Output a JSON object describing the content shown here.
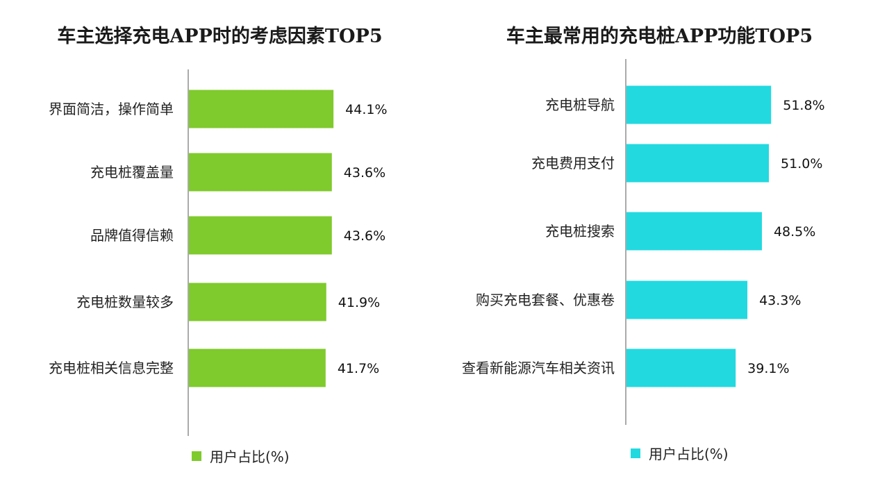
{
  "charts": [
    {
      "chart_data": {
        "type": "bar",
        "orientation": "horizontal",
        "title": "车主选择充电APP时的考虑因素TOP5",
        "categories": [
          "界面简洁，操作简单",
          "充电桩覆盖量",
          "品牌值得信赖",
          "充电桩数量较多",
          "充电桩相关信息完整"
        ],
        "series": [
          {
            "name": "用户占比(%)",
            "values": [
              44.1,
              43.6,
              43.6,
              41.9,
              41.7
            ]
          }
        ],
        "value_labels": [
          "44.1%",
          "43.6%",
          "43.6%",
          "41.9%",
          "41.7%"
        ],
        "xlim": [
          0,
          100
        ],
        "grid": false,
        "legend_position": "bottom",
        "color": "#7fca2c"
      }
    },
    {
      "chart_data": {
        "type": "bar",
        "orientation": "horizontal",
        "title": "车主最常用的充电桩APP功能TOP5",
        "categories": [
          "充电桩导航",
          "充电费用支付",
          "充电桩搜索",
          "购买充电套餐、优惠卷",
          "查看新能源汽车相关资讯"
        ],
        "series": [
          {
            "name": "用户占比(%)",
            "values": [
              51.8,
              51.0,
              48.5,
              43.3,
              39.1
            ]
          }
        ],
        "value_labels": [
          "51.8%",
          "51.0%",
          "48.5%",
          "43.3%",
          "39.1%"
        ],
        "xlim": [
          0,
          100
        ],
        "grid": false,
        "legend_position": "bottom",
        "color": "#22d9e0"
      }
    }
  ]
}
